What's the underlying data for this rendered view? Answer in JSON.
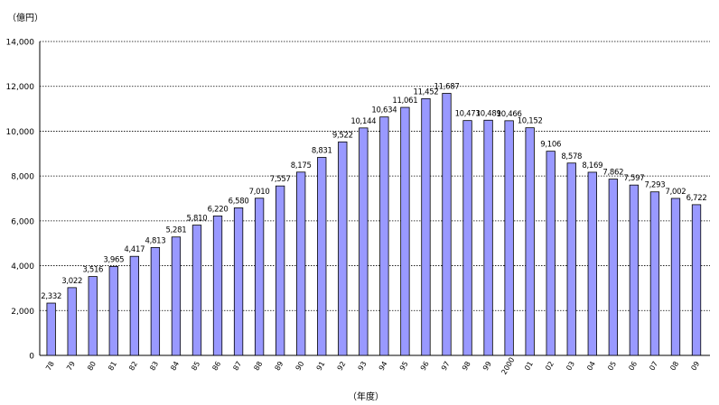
{
  "chart_data": {
    "type": "bar",
    "ylabel": "（億円）",
    "xlabel": "（年度）",
    "categories": [
      "78",
      "79",
      "80",
      "81",
      "82",
      "83",
      "84",
      "85",
      "86",
      "87",
      "88",
      "89",
      "90",
      "91",
      "92",
      "93",
      "94",
      "95",
      "96",
      "97",
      "98",
      "99",
      "2000",
      "01",
      "02",
      "03",
      "04",
      "05",
      "06",
      "07",
      "08",
      "09"
    ],
    "values": [
      2332,
      3022,
      3516,
      3965,
      4417,
      4813,
      5281,
      5810,
      6220,
      6580,
      7010,
      7557,
      8175,
      8831,
      9522,
      10144,
      10634,
      11061,
      11452,
      11687,
      10473,
      10489,
      10466,
      10152,
      9106,
      8578,
      8169,
      7862,
      7597,
      7293,
      7002,
      6722
    ],
    "value_labels": [
      "2,332",
      "3,022",
      "3,516",
      "3,965",
      "4,417",
      "4,813",
      "5,281",
      "5,810",
      "6,220",
      "6,580",
      "7,010",
      "7,557",
      "8,175",
      "8,831",
      "9,522",
      "10,144",
      "10,634",
      "11,061",
      "11,452",
      "11,687",
      "10,473",
      "10,489",
      "10,466",
      "10,152",
      "9,106",
      "8,578",
      "8,169",
      "7,862",
      "7,597",
      "7,293",
      "7,002",
      "6,722"
    ],
    "yticks": [
      0,
      2000,
      4000,
      6000,
      8000,
      10000,
      12000,
      14000
    ],
    "ytick_labels": [
      "0",
      "2,000",
      "4,000",
      "6,000",
      "8,000",
      "10,000",
      "12,000",
      "14,000"
    ],
    "ylim": [
      0,
      14000
    ],
    "grid": true,
    "colors": {
      "bar_fill": "#9999ff",
      "bar_stroke": "#000000",
      "grid": "#000000"
    }
  }
}
